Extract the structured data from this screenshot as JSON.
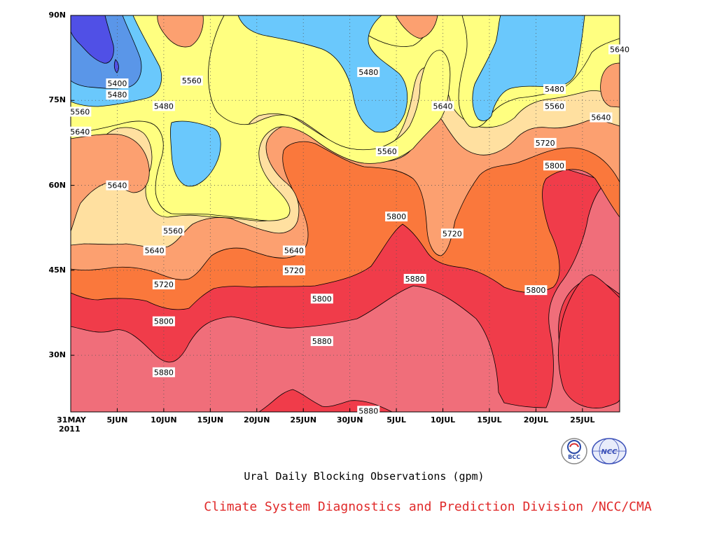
{
  "chart_data": {
    "type": "heatmap",
    "title": "",
    "xlabel": "",
    "ylabel": "",
    "x_ticks": [
      "31MAY",
      "5JUN",
      "10JUN",
      "15JUN",
      "20JUN",
      "25JUN",
      "30JUN",
      "5JUL",
      "10JUL",
      "15JUL",
      "20JUL",
      "25JUL"
    ],
    "x_year": "2011",
    "y_ticks": [
      "90N",
      "75N",
      "60N",
      "45N",
      "30N"
    ],
    "ylim": [
      20,
      90
    ],
    "xlim": [
      "2011-05-31",
      "2011-07-29"
    ],
    "grid": true,
    "contour_levels": [
      5400,
      5480,
      5560,
      5640,
      5720,
      5800,
      5880
    ],
    "fill_colors": {
      "below_5400": "#5050e6",
      "5400_5480": "#5a96e8",
      "5480_5560": "#6ac8fc",
      "5560_5640": "#ffff80",
      "5640_5720": "#ffe0a0",
      "5720_5800": "#fca070",
      "5800_5880": "#fa783c",
      "5880_5960": "#f06e7a",
      "above_5960": "#f03c4a"
    },
    "contour_labels": [
      {
        "text": "5400",
        "date": "2011-06-05",
        "lat": 78
      },
      {
        "text": "5480",
        "date": "2011-06-05",
        "lat": 76
      },
      {
        "text": "5560",
        "date": "2011-06-01",
        "lat": 73
      },
      {
        "text": "5640",
        "date": "2011-06-01",
        "lat": 69.5
      },
      {
        "text": "5640",
        "date": "2011-06-05",
        "lat": 60
      },
      {
        "text": "5480",
        "date": "2011-06-10",
        "lat": 74
      },
      {
        "text": "5560",
        "date": "2011-06-13",
        "lat": 78.5
      },
      {
        "text": "5560",
        "date": "2011-06-11",
        "lat": 52
      },
      {
        "text": "5640",
        "date": "2011-06-09",
        "lat": 48.5
      },
      {
        "text": "5720",
        "date": "2011-06-10",
        "lat": 42.5
      },
      {
        "text": "5800",
        "date": "2011-06-10",
        "lat": 36
      },
      {
        "text": "5880",
        "date": "2011-06-10",
        "lat": 27
      },
      {
        "text": "5480",
        "date": "2011-07-02",
        "lat": 80
      },
      {
        "text": "5560",
        "date": "2011-07-04",
        "lat": 66
      },
      {
        "text": "5640",
        "date": "2011-06-24",
        "lat": 48.5
      },
      {
        "text": "5720",
        "date": "2011-06-24",
        "lat": 45
      },
      {
        "text": "5800",
        "date": "2011-06-27",
        "lat": 40
      },
      {
        "text": "5880",
        "date": "2011-06-27",
        "lat": 32.5
      },
      {
        "text": "5880",
        "date": "2011-07-02",
        "lat": 20.2
      },
      {
        "text": "5800",
        "date": "2011-07-05",
        "lat": 54.5
      },
      {
        "text": "5880",
        "date": "2011-07-07",
        "lat": 43.5
      },
      {
        "text": "5640",
        "date": "2011-07-10",
        "lat": 74
      },
      {
        "text": "5720",
        "date": "2011-07-11",
        "lat": 51.5
      },
      {
        "text": "5480",
        "date": "2011-07-22",
        "lat": 77
      },
      {
        "text": "5560",
        "date": "2011-07-22",
        "lat": 74
      },
      {
        "text": "5640",
        "date": "2011-07-27",
        "lat": 72
      },
      {
        "text": "5720",
        "date": "2011-07-21",
        "lat": 67.5
      },
      {
        "text": "5800",
        "date": "2011-07-22",
        "lat": 63.5
      },
      {
        "text": "5800",
        "date": "2011-07-20",
        "lat": 41.5
      },
      {
        "text": "5640",
        "date": "2011-07-29",
        "lat": 84
      }
    ]
  },
  "caption": "Ural Daily Blocking Observations (gpm)",
  "footer": "Climate System Diagnostics and Prediction Division /NCC/CMA",
  "logos": {
    "bcc_text": "BCC",
    "ncc_text": "NCC"
  }
}
